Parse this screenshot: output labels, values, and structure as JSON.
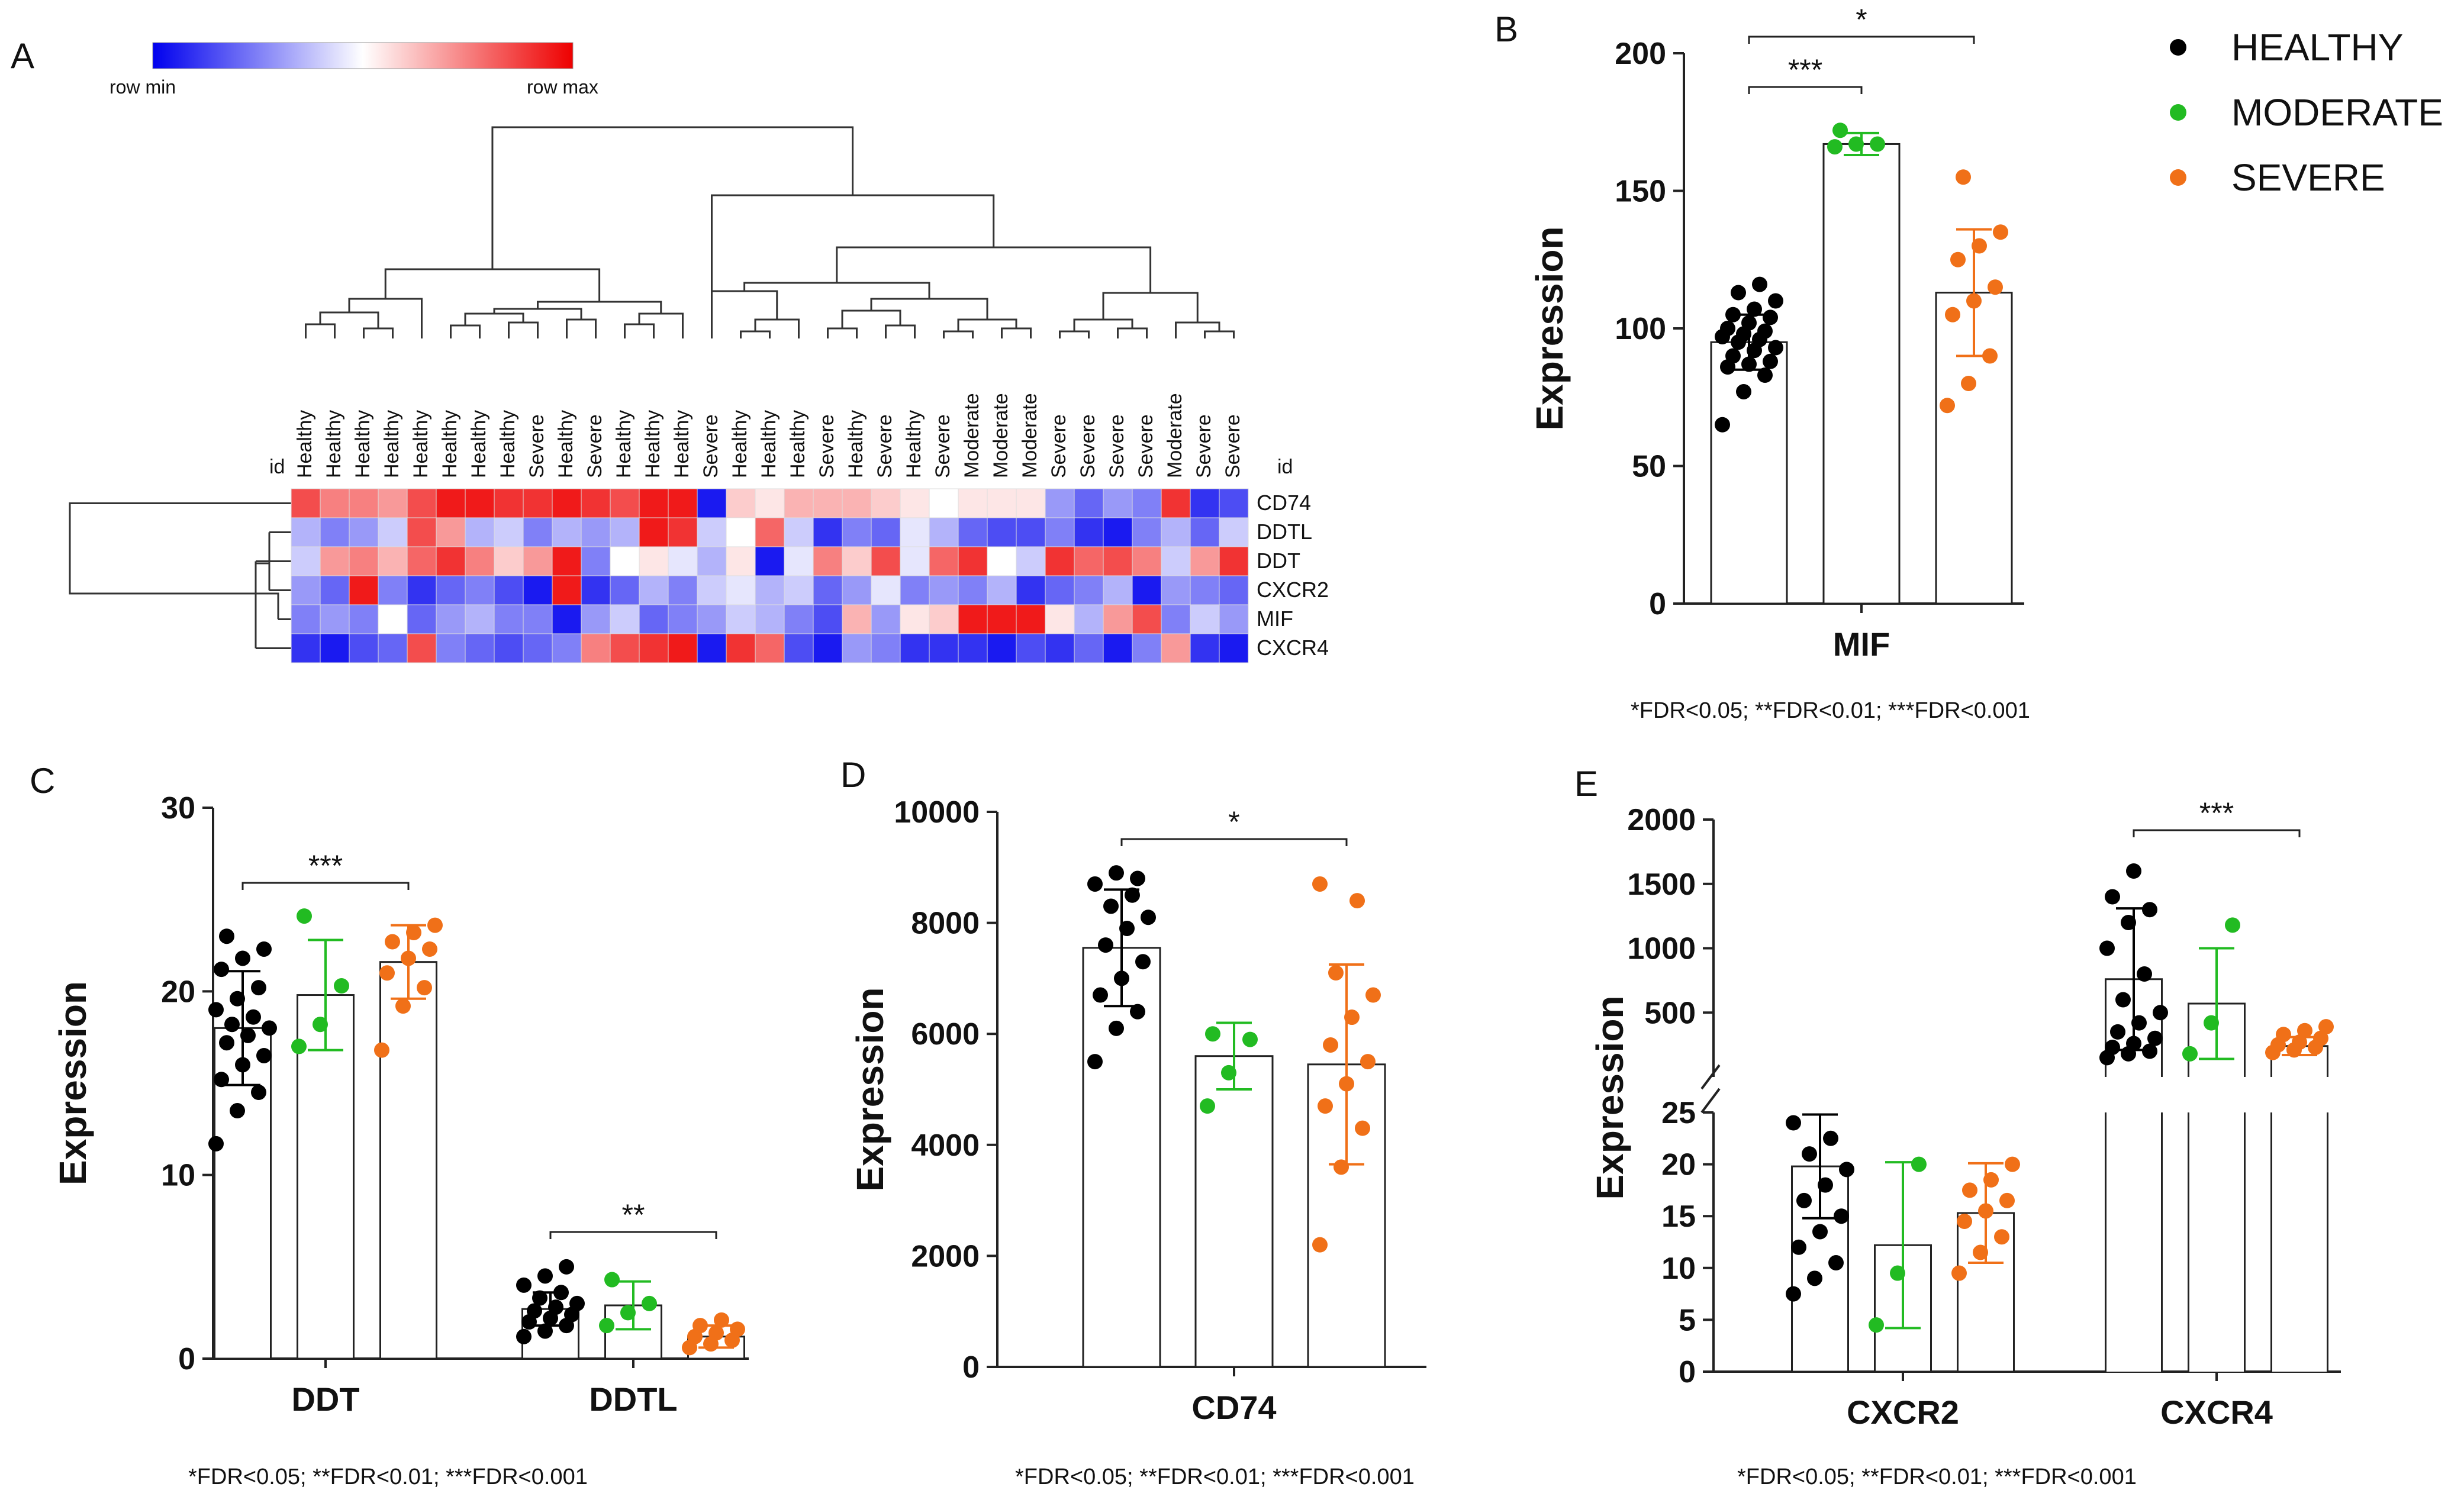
{
  "colors": {
    "healthy": "#000000",
    "moderate": "#22bb22",
    "severe": "#f07018",
    "low": "#0000ee",
    "mid": "#ffffff",
    "high": "#ee0000"
  },
  "footnote": "*FDR<0.05; **FDR<0.01; ***FDR<0.001",
  "legend": [
    "HEALTHY",
    "MODERATE",
    "SEVERE"
  ],
  "chart_data": [
    {
      "panel": "A",
      "type": "heatmap",
      "colorbar_min": "row  min",
      "colorbar_max": "row  max",
      "id_label": "id",
      "columns": [
        "Healthy",
        "Healthy",
        "Healthy",
        "Healthy",
        "Healthy",
        "Healthy",
        "Healthy",
        "Healthy",
        "Severe",
        "Healthy",
        "Severe",
        "Healthy",
        "Healthy",
        "Healthy",
        "Severe",
        "Healthy",
        "Healthy",
        "Healthy",
        "Severe",
        "Healthy",
        "Severe",
        "Healthy",
        "Severe",
        "Moderate",
        "Moderate",
        "Moderate",
        "Severe",
        "Severe",
        "Severe",
        "Severe",
        "Moderate",
        "Severe",
        "Severe"
      ],
      "rows": [
        "CD74",
        "DDTL",
        "DDT",
        "CXCR2",
        "MIF",
        "CXCR4"
      ],
      "values": [
        [
          0.7,
          0.5,
          0.5,
          0.4,
          0.7,
          0.9,
          0.9,
          0.8,
          0.8,
          0.9,
          0.8,
          0.7,
          0.9,
          0.9,
          -0.9,
          0.2,
          0.1,
          0.3,
          0.3,
          0.3,
          0.2,
          0.1,
          0.0,
          0.1,
          0.1,
          0.1,
          -0.4,
          -0.6,
          -0.4,
          -0.5,
          0.8,
          -0.8,
          -0.7
        ],
        [
          -0.3,
          -0.5,
          -0.4,
          -0.2,
          0.7,
          0.4,
          -0.3,
          -0.2,
          -0.5,
          -0.3,
          -0.4,
          -0.3,
          0.9,
          0.8,
          -0.2,
          0.0,
          0.6,
          -0.2,
          -0.8,
          -0.5,
          -0.6,
          -0.1,
          -0.3,
          -0.6,
          -0.7,
          -0.7,
          -0.5,
          -0.8,
          -0.9,
          -0.5,
          -0.3,
          -0.6,
          -0.2
        ],
        [
          -0.2,
          0.4,
          0.5,
          0.3,
          0.6,
          0.8,
          0.5,
          0.2,
          0.4,
          0.9,
          -0.5,
          0.0,
          0.1,
          -0.1,
          -0.3,
          0.1,
          -0.9,
          -0.1,
          0.5,
          0.2,
          0.7,
          -0.1,
          0.6,
          0.8,
          0.0,
          -0.2,
          0.8,
          0.6,
          0.7,
          0.5,
          -0.2,
          0.4,
          0.8
        ],
        [
          -0.4,
          -0.6,
          0.9,
          -0.5,
          -0.8,
          -0.6,
          -0.5,
          -0.7,
          -0.9,
          0.9,
          -0.8,
          -0.6,
          -0.3,
          -0.5,
          -0.2,
          -0.1,
          -0.3,
          -0.2,
          -0.6,
          -0.4,
          -0.1,
          -0.5,
          -0.4,
          -0.5,
          -0.3,
          -0.8,
          -0.6,
          -0.5,
          -0.3,
          -0.9,
          -0.4,
          -0.5,
          -0.6
        ],
        [
          -0.5,
          -0.4,
          -0.5,
          0.0,
          -0.6,
          -0.4,
          -0.3,
          -0.5,
          -0.5,
          -0.9,
          -0.4,
          -0.2,
          -0.6,
          -0.5,
          -0.4,
          -0.2,
          -0.3,
          -0.5,
          -0.7,
          0.3,
          -0.4,
          0.1,
          0.2,
          0.9,
          0.9,
          0.9,
          0.1,
          -0.3,
          0.4,
          0.7,
          -0.5,
          -0.2,
          -0.4
        ],
        [
          -0.8,
          -0.9,
          -0.7,
          -0.6,
          0.7,
          -0.5,
          -0.6,
          -0.7,
          -0.6,
          -0.5,
          0.5,
          0.7,
          0.8,
          0.9,
          -0.9,
          0.8,
          0.6,
          -0.7,
          -0.9,
          -0.4,
          -0.5,
          -0.8,
          -0.8,
          -0.8,
          -0.9,
          -0.7,
          -0.8,
          -0.6,
          -0.9,
          -0.5,
          0.4,
          -0.8,
          -0.9
        ]
      ]
    },
    {
      "panel": "B",
      "type": "bar",
      "ylabel": "Expression",
      "ylim": [
        0,
        200
      ],
      "yticks": [
        0,
        50,
        100,
        150,
        200
      ],
      "categories": [
        "MIF"
      ],
      "series": [
        {
          "name": "HEALTHY",
          "mean": 95,
          "sd": 10,
          "points": [
            65,
            77,
            83,
            86,
            87,
            88,
            90,
            92,
            93,
            95,
            96,
            97,
            98,
            99,
            100,
            102,
            104,
            105,
            107,
            110,
            113,
            116
          ]
        },
        {
          "name": "MODERATE",
          "mean": 167,
          "sd": 4,
          "points": [
            166,
            167,
            167,
            172
          ]
        },
        {
          "name": "SEVERE",
          "mean": 113,
          "sd": 23,
          "points": [
            72,
            80,
            90,
            105,
            110,
            115,
            125,
            130,
            135,
            155
          ]
        }
      ],
      "comparisons": [
        {
          "from": "HEALTHY",
          "to": "MODERATE",
          "label": "***"
        },
        {
          "from": "HEALTHY",
          "to": "SEVERE",
          "label": "*"
        }
      ]
    },
    {
      "panel": "C",
      "type": "bar",
      "ylabel": "Expression",
      "ylim": [
        0,
        30
      ],
      "yticks": [
        0,
        10,
        20,
        30
      ],
      "categories": [
        "DDT",
        "DDTL"
      ],
      "series": [
        {
          "name": "HEALTHY",
          "means": [
            18.0,
            2.7
          ],
          "sd": [
            3.1,
            0.9
          ],
          "points": [
            [
              11.7,
              13.5,
              14.5,
              15.2,
              16.0,
              16.5,
              17.2,
              17.6,
              18.0,
              18.2,
              18.6,
              19.0,
              19.6,
              20.2,
              21.2,
              21.8,
              22.3,
              23.0
            ],
            [
              1.2,
              1.5,
              1.8,
              2.0,
              2.2,
              2.4,
              2.6,
              2.8,
              3.0,
              3.3,
              3.6,
              4.0,
              4.5,
              5.0
            ]
          ]
        },
        {
          "name": "MODERATE",
          "means": [
            19.8,
            2.9
          ],
          "sd": [
            3.0,
            1.3
          ],
          "points": [
            [
              17.0,
              18.2,
              20.3,
              24.1
            ],
            [
              1.8,
              2.5,
              3.0,
              4.3
            ]
          ]
        },
        {
          "name": "SEVERE",
          "means": [
            21.6,
            1.2
          ],
          "sd": [
            2.0,
            0.6
          ],
          "points": [
            [
              16.8,
              19.2,
              20.2,
              21.0,
              21.8,
              22.3,
              22.7,
              23.2,
              23.6
            ],
            [
              0.6,
              0.8,
              1.0,
              1.2,
              1.4,
              1.6,
              1.8,
              2.1
            ]
          ]
        }
      ],
      "comparisons": [
        {
          "category": "DDT",
          "from": "HEALTHY",
          "to": "SEVERE",
          "label": "***"
        },
        {
          "category": "DDTL",
          "from": "HEALTHY",
          "to": "SEVERE",
          "label": "**"
        }
      ]
    },
    {
      "panel": "D",
      "type": "bar",
      "ylabel": "Expression",
      "ylim": [
        0,
        10000
      ],
      "yticks": [
        0,
        2000,
        4000,
        6000,
        8000,
        10000
      ],
      "categories": [
        "CD74"
      ],
      "series": [
        {
          "name": "HEALTHY",
          "mean": 7550,
          "sd": 1050,
          "points": [
            5500,
            6100,
            6400,
            6700,
            7000,
            7300,
            7600,
            7900,
            8100,
            8300,
            8500,
            8700,
            8900,
            8800
          ]
        },
        {
          "name": "MODERATE",
          "mean": 5600,
          "sd": 600,
          "points": [
            4700,
            5300,
            5900,
            6000
          ]
        },
        {
          "name": "SEVERE",
          "mean": 5450,
          "sd": 1800,
          "points": [
            2200,
            3600,
            4300,
            4700,
            5100,
            5500,
            5800,
            6300,
            6700,
            7100,
            8400,
            8700
          ]
        }
      ],
      "comparisons": [
        {
          "from": "HEALTHY",
          "to": "SEVERE",
          "label": "*"
        }
      ]
    },
    {
      "panel": "E",
      "type": "bar",
      "ylabel": "Expression",
      "axis_break": true,
      "lower_range": [
        0,
        25
      ],
      "lower_ticks": [
        0,
        5,
        10,
        15,
        20,
        25
      ],
      "upper_range": [
        0,
        2000
      ],
      "upper_ticks": [
        500,
        1000,
        1500,
        2000
      ],
      "categories": [
        "CXCR2",
        "CXCR4"
      ],
      "series": [
        {
          "name": "HEALTHY",
          "means": [
            19.8,
            760
          ],
          "sd": [
            5.0,
            550
          ],
          "points": [
            [
              7.5,
              9.0,
              10.5,
              12.0,
              13.5,
              15.0,
              16.5,
              18.0,
              19.5,
              21.0,
              22.5,
              24.0
            ],
            [
              150,
              180,
              200,
              230,
              260,
              300,
              350,
              420,
              500,
              600,
              800,
              1000,
              1200,
              1300,
              1400,
              1600
            ]
          ]
        },
        {
          "name": "MODERATE",
          "means": [
            12.2,
            570
          ],
          "sd": [
            8.0,
            430
          ],
          "points": [
            [
              4.5,
              9.5,
              20.0
            ],
            [
              180,
              420,
              1180
            ]
          ]
        },
        {
          "name": "SEVERE",
          "means": [
            15.3,
            240
          ],
          "sd": [
            4.8,
            70
          ],
          "points": [
            [
              9.5,
              11.5,
              13.0,
              14.5,
              15.5,
              16.5,
              17.5,
              18.5,
              20.0
            ],
            [
              190,
              210,
              230,
              250,
              270,
              300,
              330,
              360,
              390
            ]
          ]
        }
      ],
      "comparisons": [
        {
          "category": "CXCR4",
          "from": "HEALTHY",
          "to": "SEVERE",
          "label": "***"
        }
      ]
    }
  ]
}
